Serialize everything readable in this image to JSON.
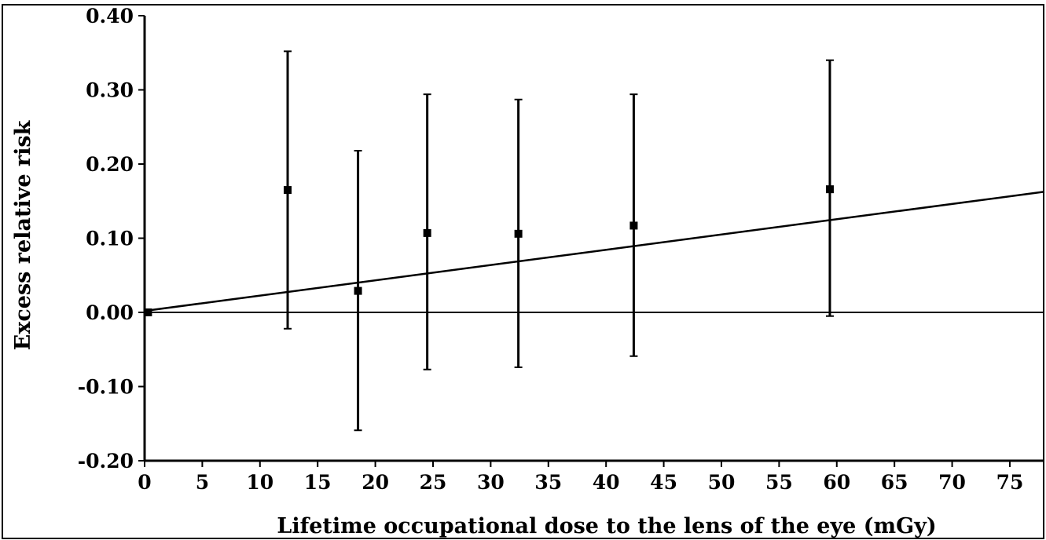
{
  "chart_data": {
    "type": "scatter",
    "title": "",
    "xlabel": "Lifetime occupational dose to the lens of the eye (mGy)",
    "ylabel": "Excess relative risk",
    "xlim": [
      0,
      78
    ],
    "ylim": [
      -0.2,
      0.4
    ],
    "x_ticks": [
      "0",
      "5",
      "10",
      "15",
      "20",
      "25",
      "30",
      "35",
      "40",
      "45",
      "50",
      "55",
      "60",
      "65",
      "70",
      "75"
    ],
    "y_ticks": [
      "0.40",
      "0.30",
      "0.20",
      "0.10",
      "0.00",
      "-0.10",
      "-0.20"
    ],
    "grid": false,
    "legend": "none",
    "points": [
      {
        "x": 0.3,
        "y": 0.0,
        "lower": null,
        "upper": null
      },
      {
        "x": 12.4,
        "y": 0.165,
        "lower": -0.022,
        "upper": 0.352
      },
      {
        "x": 18.5,
        "y": 0.029,
        "lower": -0.159,
        "upper": 0.218
      },
      {
        "x": 24.5,
        "y": 0.107,
        "lower": -0.077,
        "upper": 0.294
      },
      {
        "x": 32.4,
        "y": 0.106,
        "lower": -0.074,
        "upper": 0.287
      },
      {
        "x": 42.4,
        "y": 0.117,
        "lower": -0.059,
        "upper": 0.294
      },
      {
        "x": 59.4,
        "y": 0.166,
        "lower": -0.005,
        "upper": 0.34
      }
    ],
    "fit_line": {
      "slope": 0.00206,
      "intercept": 0.002
    },
    "reference_line_y": 0.0,
    "colors": {
      "marks": "#000000",
      "background": "#ffffff"
    }
  }
}
